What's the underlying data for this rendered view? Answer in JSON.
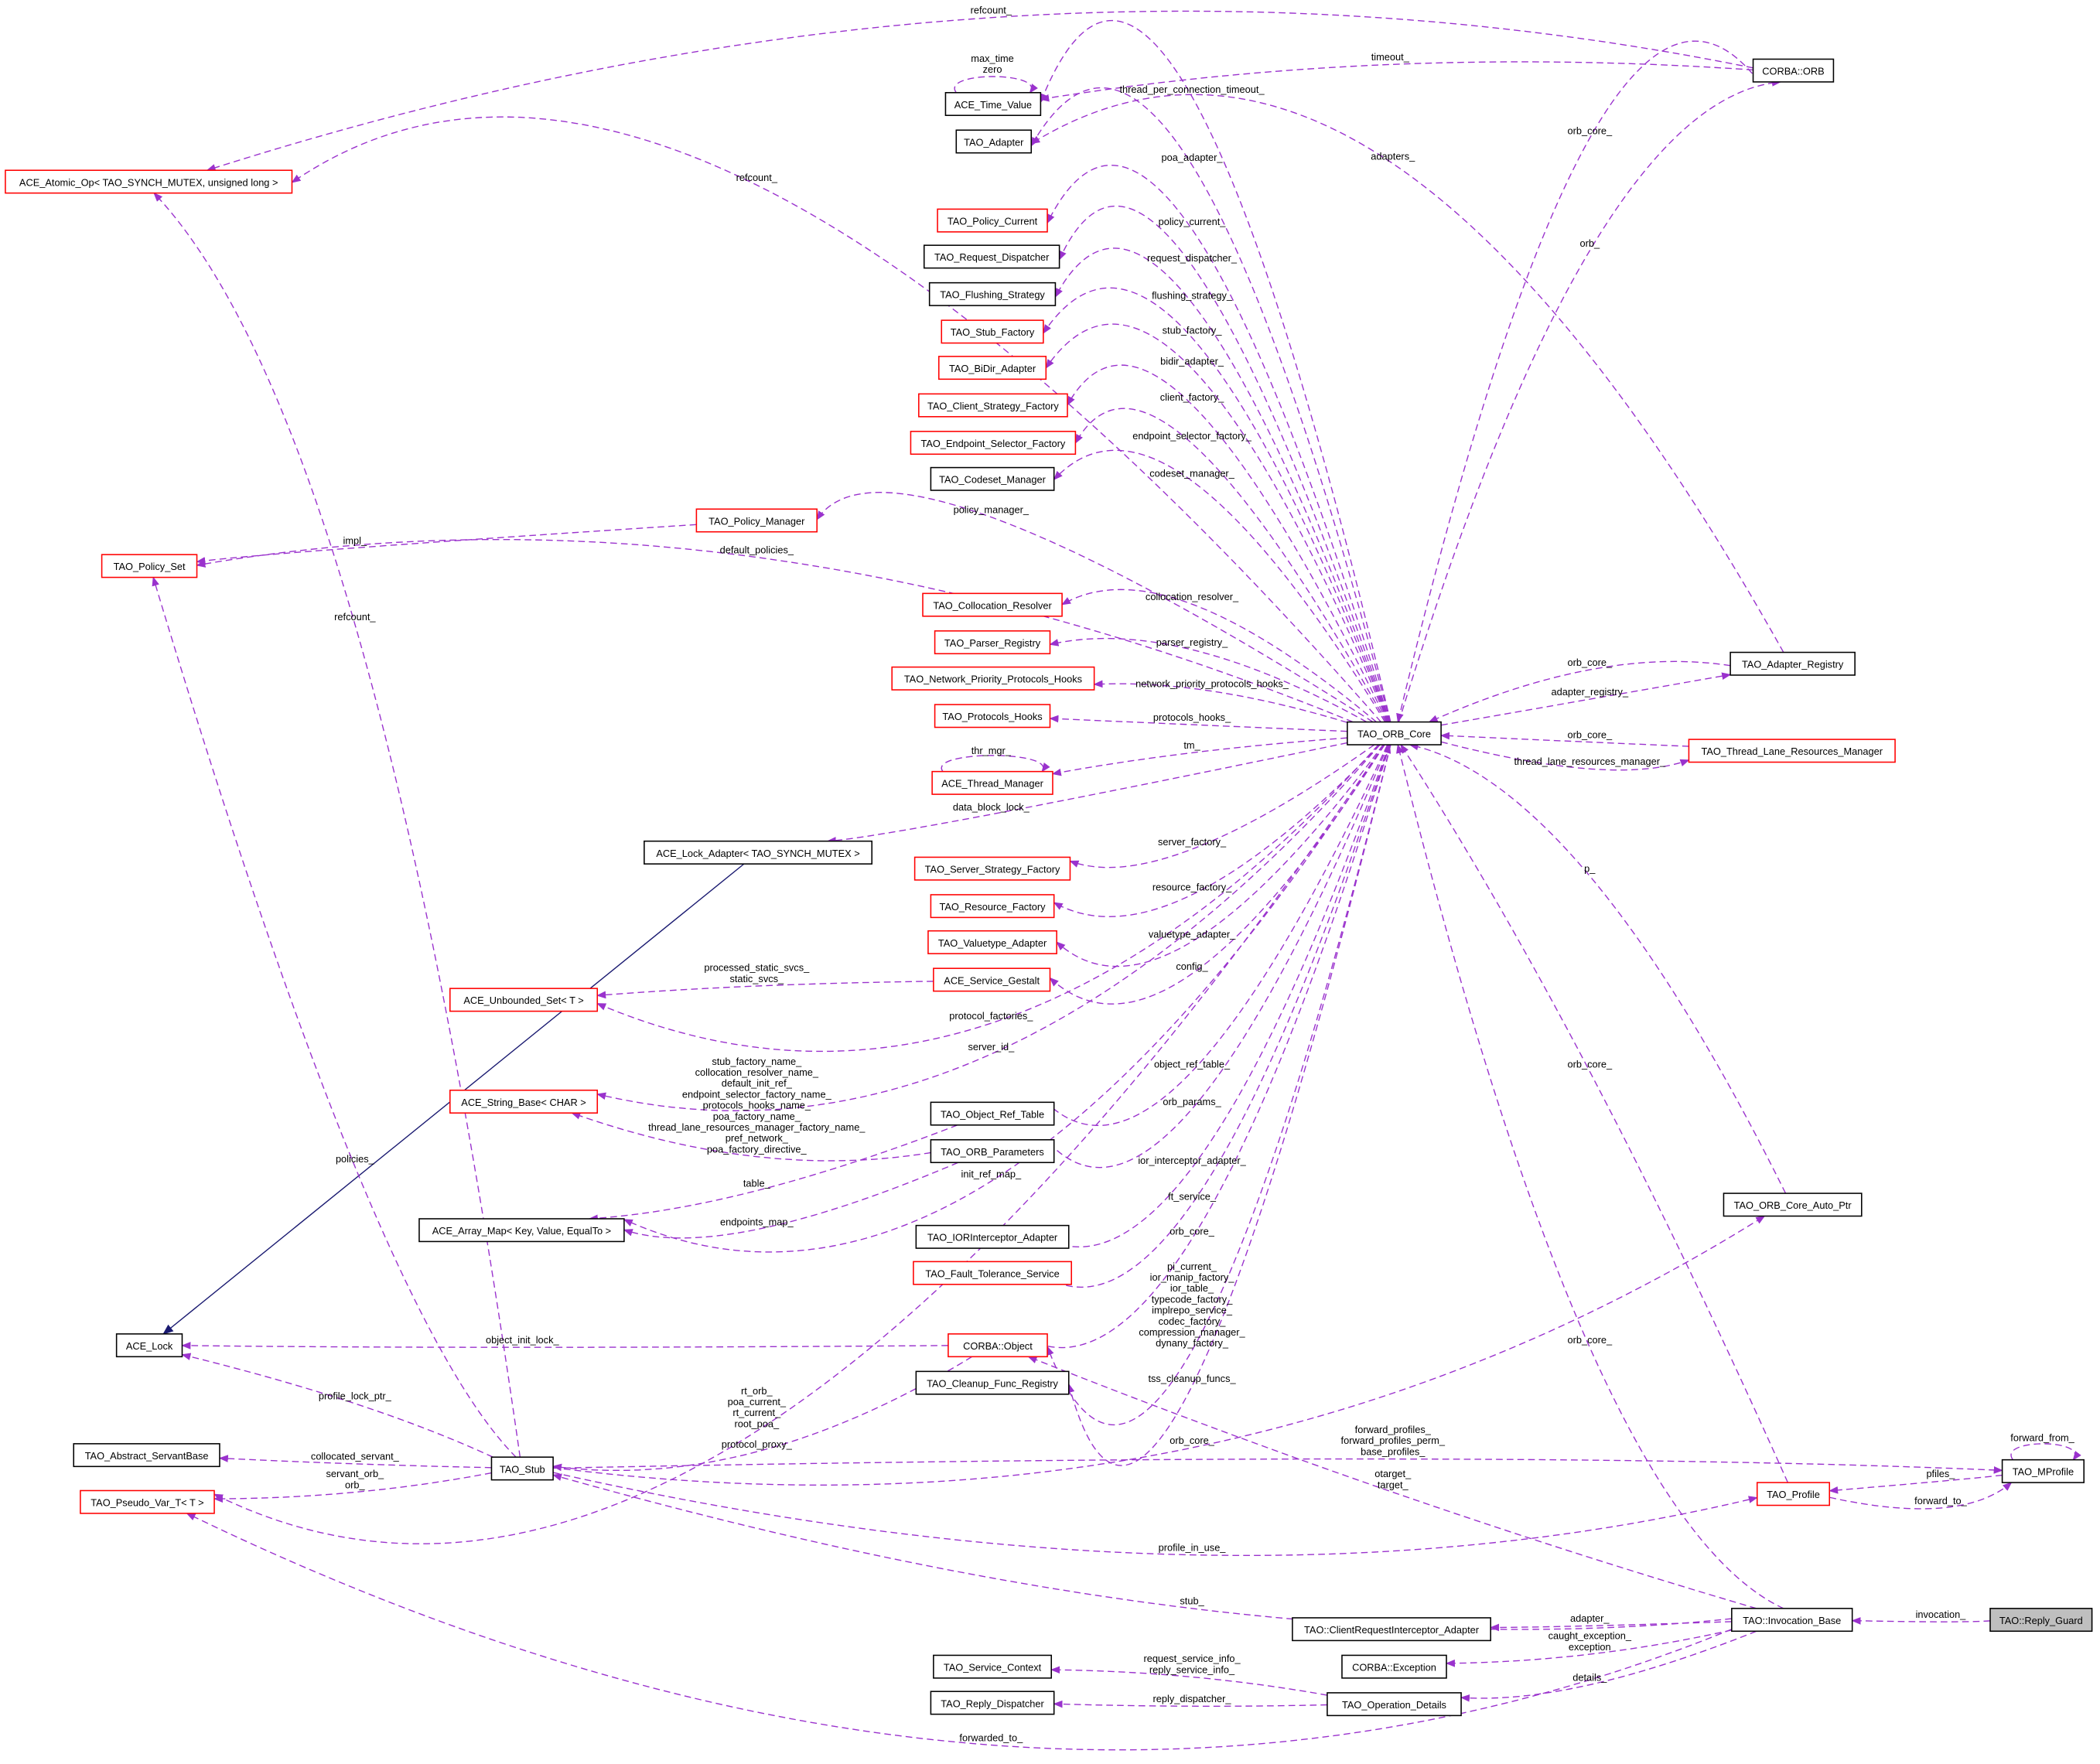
{
  "colors": {
    "edge": "#9a32cd",
    "inheritance_edge": "#191970",
    "node_border_highlight": "#ff0000",
    "node_border": "#000000",
    "focus_node_fill": "#bfbfbf"
  },
  "nodes": [
    {
      "id": "atomic_op",
      "label": "ACE_Atomic_Op< TAO_SYNCH_MUTEX, unsigned long >",
      "border": "red"
    },
    {
      "id": "time_value",
      "label": "ACE_Time_Value",
      "border": "black"
    },
    {
      "id": "adapter",
      "label": "TAO_Adapter",
      "border": "black"
    },
    {
      "id": "policy_current",
      "label": "TAO_Policy_Current",
      "border": "red"
    },
    {
      "id": "request_dispatcher",
      "label": "TAO_Request_Dispatcher",
      "border": "black"
    },
    {
      "id": "flushing_strategy",
      "label": "TAO_Flushing_Strategy",
      "border": "black"
    },
    {
      "id": "stub_factory",
      "label": "TAO_Stub_Factory",
      "border": "red"
    },
    {
      "id": "bidir_adapter",
      "label": "TAO_BiDir_Adapter",
      "border": "red"
    },
    {
      "id": "client_strategy_factory",
      "label": "TAO_Client_Strategy_Factory",
      "border": "red"
    },
    {
      "id": "endpoint_selector_factory",
      "label": "TAO_Endpoint_Selector_Factory",
      "border": "red"
    },
    {
      "id": "codeset_manager",
      "label": "TAO_Codeset_Manager",
      "border": "black"
    },
    {
      "id": "policy_manager",
      "label": "TAO_Policy_Manager",
      "border": "red"
    },
    {
      "id": "policy_set",
      "label": "TAO_Policy_Set",
      "border": "red"
    },
    {
      "id": "collocation_resolver",
      "label": "TAO_Collocation_Resolver",
      "border": "red"
    },
    {
      "id": "parser_registry",
      "label": "TAO_Parser_Registry",
      "border": "red"
    },
    {
      "id": "np_protocols_hooks",
      "label": "TAO_Network_Priority_Protocols_Hooks",
      "border": "red"
    },
    {
      "id": "protocols_hooks",
      "label": "TAO_Protocols_Hooks",
      "border": "red"
    },
    {
      "id": "thread_manager",
      "label": "ACE_Thread_Manager",
      "border": "red"
    },
    {
      "id": "lock_adapter",
      "label": "ACE_Lock_Adapter< TAO_SYNCH_MUTEX >",
      "border": "black"
    },
    {
      "id": "server_strategy_factory",
      "label": "TAO_Server_Strategy_Factory",
      "border": "red"
    },
    {
      "id": "resource_factory",
      "label": "TAO_Resource_Factory",
      "border": "red"
    },
    {
      "id": "valuetype_adapter",
      "label": "TAO_Valuetype_Adapter",
      "border": "red"
    },
    {
      "id": "service_gestalt",
      "label": "ACE_Service_Gestalt",
      "border": "red"
    },
    {
      "id": "unbounded_set",
      "label": "ACE_Unbounded_Set< T >",
      "border": "red"
    },
    {
      "id": "string_base",
      "label": "ACE_String_Base< CHAR >",
      "border": "red"
    },
    {
      "id": "object_ref_table",
      "label": "TAO_Object_Ref_Table",
      "border": "black"
    },
    {
      "id": "orb_parameters",
      "label": "TAO_ORB_Parameters",
      "border": "black"
    },
    {
      "id": "array_map",
      "label": "ACE_Array_Map< Key, Value, EqualTo >",
      "border": "black"
    },
    {
      "id": "ior_interceptor_adapter",
      "label": "TAO_IORInterceptor_Adapter",
      "border": "black"
    },
    {
      "id": "fault_tolerance_service",
      "label": "TAO_Fault_Tolerance_Service",
      "border": "red"
    },
    {
      "id": "ace_lock",
      "label": "ACE_Lock",
      "border": "black"
    },
    {
      "id": "corba_object",
      "label": "CORBA::Object",
      "border": "red"
    },
    {
      "id": "cleanup_func_registry",
      "label": "TAO_Cleanup_Func_Registry",
      "border": "black"
    },
    {
      "id": "abstract_servant_base",
      "label": "TAO_Abstract_ServantBase",
      "border": "black"
    },
    {
      "id": "stub",
      "label": "TAO_Stub",
      "border": "black"
    },
    {
      "id": "pseudo_var",
      "label": "TAO_Pseudo_Var_T< T >",
      "border": "red"
    },
    {
      "id": "corba_orb",
      "label": "CORBA::ORB",
      "border": "black"
    },
    {
      "id": "orb_core",
      "label": "TAO_ORB_Core",
      "border": "black"
    },
    {
      "id": "adapter_registry",
      "label": "TAO_Adapter_Registry",
      "border": "black"
    },
    {
      "id": "thread_lane_rm",
      "label": "TAO_Thread_Lane_Resources_Manager",
      "border": "red"
    },
    {
      "id": "orb_core_auto_ptr",
      "label": "TAO_ORB_Core_Auto_Ptr",
      "border": "black"
    },
    {
      "id": "mprofile",
      "label": "TAO_MProfile",
      "border": "black"
    },
    {
      "id": "profile",
      "label": "TAO_Profile",
      "border": "red"
    },
    {
      "id": "invocation_base",
      "label": "TAO::Invocation_Base",
      "border": "black"
    },
    {
      "id": "reply_guard",
      "label": "TAO::Reply_Guard",
      "border": "focus"
    },
    {
      "id": "cri_adapter",
      "label": "TAO::ClientRequestInterceptor_Adapter",
      "border": "black"
    },
    {
      "id": "corba_exception",
      "label": "CORBA::Exception",
      "border": "black"
    },
    {
      "id": "service_context",
      "label": "TAO_Service_Context",
      "border": "black"
    },
    {
      "id": "reply_dispatcher",
      "label": "TAO_Reply_Dispatcher",
      "border": "black"
    },
    {
      "id": "operation_details",
      "label": "TAO_Operation_Details",
      "border": "black"
    }
  ],
  "edges": [
    {
      "from": "corba_orb",
      "to": "atomic_op",
      "label": [
        "refcount_"
      ]
    },
    {
      "from": "corba_orb",
      "to": "time_value",
      "label": [
        "timeout_"
      ]
    },
    {
      "from": "time_value",
      "to": "time_value",
      "label": [
        "max_time",
        "zero"
      ]
    },
    {
      "from": "orb_core",
      "to": "time_value",
      "label": [
        "thread_per_connection_timeout_"
      ]
    },
    {
      "from": "orb_core",
      "to": "adapter",
      "label": [
        "poa_adapter_"
      ]
    },
    {
      "from": "orb_core",
      "to": "atomic_op",
      "label": [
        "refcount_"
      ]
    },
    {
      "from": "orb_core",
      "to": "policy_current",
      "label": [
        "policy_current_"
      ]
    },
    {
      "from": "orb_core",
      "to": "request_dispatcher",
      "label": [
        "request_dispatcher_"
      ]
    },
    {
      "from": "orb_core",
      "to": "flushing_strategy",
      "label": [
        "flushing_strategy_"
      ]
    },
    {
      "from": "orb_core",
      "to": "stub_factory",
      "label": [
        "stub_factory_"
      ]
    },
    {
      "from": "orb_core",
      "to": "bidir_adapter",
      "label": [
        "bidir_adapter_"
      ]
    },
    {
      "from": "orb_core",
      "to": "client_strategy_factory",
      "label": [
        "client_factory_"
      ]
    },
    {
      "from": "orb_core",
      "to": "endpoint_selector_factory",
      "label": [
        "endpoint_selector_factory_"
      ]
    },
    {
      "from": "orb_core",
      "to": "codeset_manager",
      "label": [
        "codeset_manager_"
      ]
    },
    {
      "from": "orb_core",
      "to": "policy_manager",
      "label": [
        "policy_manager_"
      ]
    },
    {
      "from": "policy_manager",
      "to": "policy_set",
      "label": [
        "impl_"
      ]
    },
    {
      "from": "orb_core",
      "to": "policy_set",
      "label": [
        "default_policies_"
      ]
    },
    {
      "from": "orb_core",
      "to": "collocation_resolver",
      "label": [
        "collocation_resolver_"
      ]
    },
    {
      "from": "orb_core",
      "to": "parser_registry",
      "label": [
        "parser_registry_"
      ]
    },
    {
      "from": "orb_core",
      "to": "np_protocols_hooks",
      "label": [
        "network_priority_protocols_hooks_"
      ]
    },
    {
      "from": "orb_core",
      "to": "protocols_hooks",
      "label": [
        "protocols_hooks_"
      ]
    },
    {
      "from": "orb_core",
      "to": "thread_manager",
      "label": [
        "tm_"
      ]
    },
    {
      "from": "thread_manager",
      "to": "thread_manager",
      "label": [
        "thr_mgr_"
      ]
    },
    {
      "from": "orb_core",
      "to": "lock_adapter",
      "label": [
        "data_block_lock_"
      ]
    },
    {
      "from": "orb_core",
      "to": "server_strategy_factory",
      "label": [
        "server_factory_"
      ]
    },
    {
      "from": "orb_core",
      "to": "resource_factory",
      "label": [
        "resource_factory_"
      ]
    },
    {
      "from": "orb_core",
      "to": "valuetype_adapter",
      "label": [
        "valuetype_adapter_"
      ]
    },
    {
      "from": "orb_core",
      "to": "service_gestalt",
      "label": [
        "config_"
      ]
    },
    {
      "from": "service_gestalt",
      "to": "unbounded_set",
      "label": [
        "processed_static_svcs_",
        "static_svcs_"
      ]
    },
    {
      "from": "orb_core",
      "to": "unbounded_set",
      "label": [
        "protocol_factories_"
      ]
    },
    {
      "from": "orb_core",
      "to": "string_base",
      "label": [
        "server_id_"
      ]
    },
    {
      "from": "orb_core",
      "to": "object_ref_table",
      "label": [
        "object_ref_table_"
      ]
    },
    {
      "from": "orb_parameters",
      "to": "string_base",
      "label": [
        "stub_factory_name_",
        "collocation_resolver_name_",
        "default_init_ref_",
        "endpoint_selector_factory_name_",
        "protocols_hooks_name_",
        "poa_factory_name_",
        "thread_lane_resources_manager_factory_name_",
        "pref_network_",
        "poa_factory_directive_"
      ]
    },
    {
      "from": "orb_core",
      "to": "orb_parameters",
      "label": [
        "orb_params_"
      ]
    },
    {
      "from": "object_ref_table",
      "to": "array_map",
      "label": [
        "table_"
      ]
    },
    {
      "from": "orb_parameters",
      "to": "array_map",
      "label": [
        "endpoints_map_"
      ]
    },
    {
      "from": "orb_core",
      "to": "array_map",
      "label": [
        "init_ref_map_"
      ]
    },
    {
      "from": "orb_core",
      "to": "ior_interceptor_adapter",
      "label": [
        "ior_interceptor_adapter_"
      ]
    },
    {
      "from": "orb_core",
      "to": "fault_tolerance_service",
      "label": [
        "ft_service_"
      ]
    },
    {
      "from": "corba_object",
      "to": "orb_core",
      "label": [
        "orb_core_"
      ]
    },
    {
      "from": "orb_core",
      "to": "corba_object",
      "label": [
        "pi_current_",
        "ior_manip_factory_",
        "ior_table_",
        "typecode_factory_",
        "implrepo_service_",
        "codec_factory_",
        "compression_manager_",
        "dynany_factory_"
      ]
    },
    {
      "from": "corba_object",
      "to": "ace_lock",
      "label": [
        "object_init_lock_"
      ]
    },
    {
      "from": "orb_core",
      "to": "cleanup_func_registry",
      "label": [
        "tss_cleanup_funcs_"
      ]
    },
    {
      "from": "lock_adapter",
      "to": "ace_lock",
      "label": [],
      "kind": "inheritance"
    },
    {
      "from": "stub",
      "to": "atomic_op",
      "label": [
        "refcount_"
      ]
    },
    {
      "from": "stub",
      "to": "policy_set",
      "label": [
        "policies_"
      ]
    },
    {
      "from": "stub",
      "to": "ace_lock",
      "label": [
        "profile_lock_ptr_"
      ]
    },
    {
      "from": "stub",
      "to": "abstract_servant_base",
      "label": [
        "collocated_servant_"
      ]
    },
    {
      "from": "stub",
      "to": "pseudo_var",
      "label": [
        "servant_orb_",
        "orb_"
      ]
    },
    {
      "from": "orb_core",
      "to": "pseudo_var",
      "label": [
        "rt_orb_",
        "poa_current_",
        "rt_current_",
        "root_poa_"
      ]
    },
    {
      "from": "corba_object",
      "to": "stub",
      "label": [
        "protocol_proxy_"
      ]
    },
    {
      "from": "stub",
      "to": "orb_core_auto_ptr",
      "label": [
        "orb_core_"
      ]
    },
    {
      "from": "stub",
      "to": "mprofile",
      "label": [
        "forward_profiles_",
        "forward_profiles_perm_",
        "base_profiles_"
      ]
    },
    {
      "from": "invocation_base",
      "to": "corba_object",
      "label": [
        "otarget_",
        "target_"
      ]
    },
    {
      "from": "stub",
      "to": "profile",
      "label": [
        "profile_in_use_"
      ]
    },
    {
      "from": "invocation_base",
      "to": "stub",
      "label": [
        "stub_"
      ]
    },
    {
      "from": "invocation_base",
      "to": "cri_adapter",
      "label": [
        "adapter_"
      ]
    },
    {
      "from": "invocation_base",
      "to": "corba_exception",
      "label": [
        "caught_exception_",
        "exception"
      ]
    },
    {
      "from": "invocation_base",
      "to": "operation_details",
      "label": [
        "details_"
      ]
    },
    {
      "from": "operation_details",
      "to": "service_context",
      "label": [
        "request_service_info_",
        "reply_service_info_"
      ]
    },
    {
      "from": "operation_details",
      "to": "reply_dispatcher",
      "label": [
        "reply_dispatcher_"
      ]
    },
    {
      "from": "invocation_base",
      "to": "pseudo_var",
      "label": [
        "forwarded_to_"
      ]
    },
    {
      "from": "reply_guard",
      "to": "invocation_base",
      "label": [
        "invocation_"
      ]
    },
    {
      "from": "invocation_base",
      "to": "orb_core",
      "label": [
        "orb_core_"
      ]
    },
    {
      "from": "profile",
      "to": "orb_core",
      "label": [
        "orb_core_"
      ]
    },
    {
      "from": "orb_core_auto_ptr",
      "to": "orb_core",
      "label": [
        "p_"
      ]
    },
    {
      "from": "adapter_registry",
      "to": "orb_core",
      "label": [
        "orb_core_"
      ]
    },
    {
      "from": "orb_core",
      "to": "adapter_registry",
      "label": [
        "adapter_registry_"
      ]
    },
    {
      "from": "thread_lane_rm",
      "to": "orb_core",
      "label": [
        "orb_core_"
      ]
    },
    {
      "from": "orb_core",
      "to": "thread_lane_rm",
      "label": [
        "thread_lane_resources_manager_"
      ]
    },
    {
      "from": "corba_orb",
      "to": "orb_core",
      "label": [
        "orb_core_"
      ]
    },
    {
      "from": "orb_core",
      "to": "corba_orb",
      "label": [
        "orb_"
      ]
    },
    {
      "from": "adapter_registry",
      "to": "adapter",
      "label": [
        "adapters_"
      ]
    },
    {
      "from": "mprofile",
      "to": "profile",
      "label": [
        "pfiles_"
      ]
    },
    {
      "from": "profile",
      "to": "mprofile",
      "label": [
        "forward_to_"
      ]
    },
    {
      "from": "mprofile",
      "to": "mprofile",
      "label": [
        "forward_from_"
      ]
    }
  ]
}
